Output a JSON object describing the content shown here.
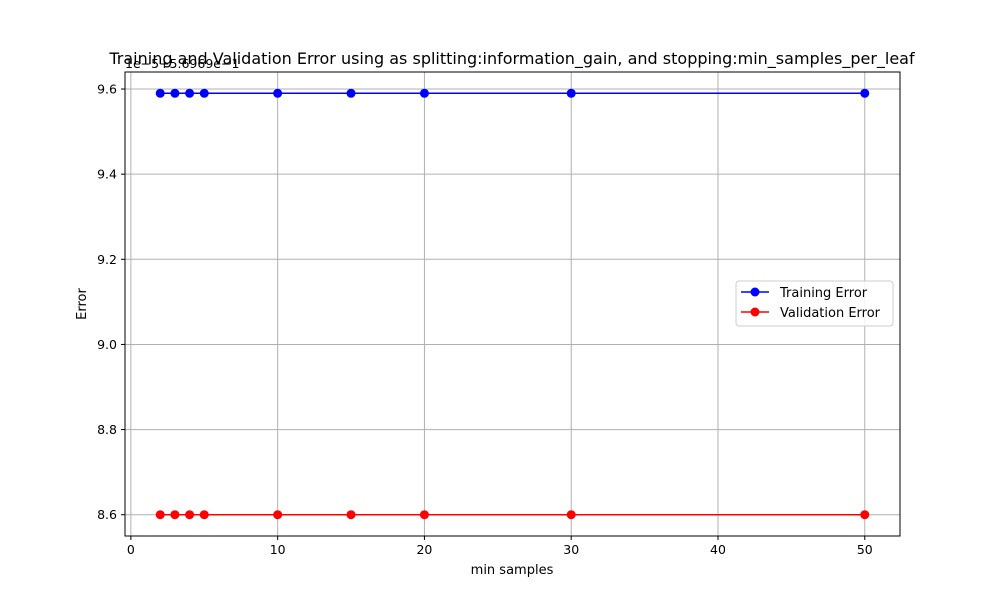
{
  "chart_data": {
    "type": "line",
    "title": "Training and Validation Error using as splitting:information_gain, and stopping:min_samples_per_leaf",
    "xlabel": "min samples",
    "ylabel": "Error",
    "y_offset_text": "1e−5+5.6969e−1",
    "x": [
      2,
      3,
      4,
      5,
      10,
      15,
      20,
      30,
      50
    ],
    "xlim": [
      -0.4,
      52.4
    ],
    "ylim": [
      8.55,
      9.64
    ],
    "x_ticks": [
      0,
      10,
      20,
      30,
      40,
      50
    ],
    "x_tick_labels": [
      "0",
      "10",
      "20",
      "30",
      "40",
      "50"
    ],
    "y_ticks": [
      8.6,
      8.8,
      9.0,
      9.2,
      9.4,
      9.6
    ],
    "y_tick_labels": [
      "8.6",
      "8.8",
      "9.0",
      "9.2",
      "9.4",
      "9.6"
    ],
    "grid": true,
    "legend_position": "center-right",
    "series": [
      {
        "name": "Training Error",
        "color": "#0000ff",
        "values": [
          9.59,
          9.59,
          9.59,
          9.59,
          9.59,
          9.59,
          9.59,
          9.59,
          9.59
        ]
      },
      {
        "name": "Validation Error",
        "color": "#ff0000",
        "values": [
          8.6,
          8.6,
          8.6,
          8.6,
          8.6,
          8.6,
          8.6,
          8.6,
          8.6
        ]
      }
    ]
  }
}
